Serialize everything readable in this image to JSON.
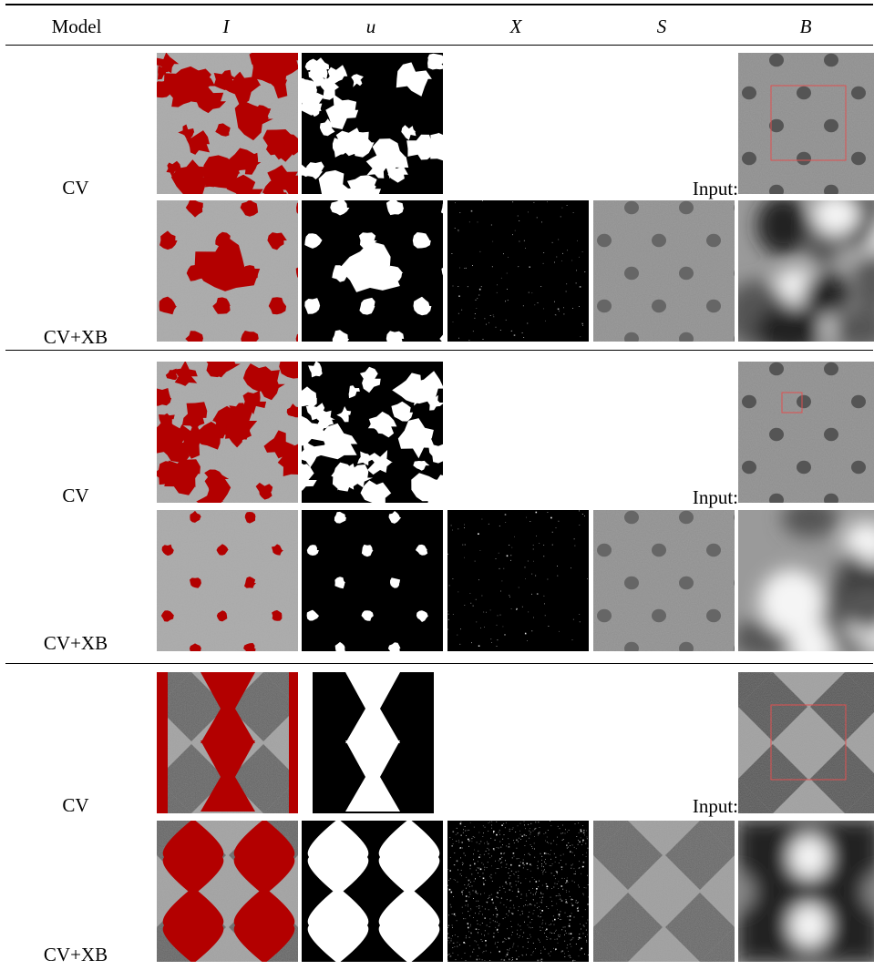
{
  "header": {
    "model": "Model",
    "cols": [
      "I",
      "u",
      "X",
      "S",
      "B"
    ]
  },
  "blocks": [
    {
      "row_cv": "CV",
      "row_xb": "CV+XB",
      "input_label": "Input:",
      "pattern": "dots-dense"
    },
    {
      "row_cv": "CV",
      "row_xb": "CV+XB",
      "input_label": "Input:",
      "pattern": "dots-sparse"
    },
    {
      "row_cv": "CV",
      "row_xb": "CV+XB",
      "input_label": "Input:",
      "pattern": "diamonds"
    }
  ],
  "colors": {
    "segmentation": "#b30000",
    "rule": "#000000",
    "box": "#e05050"
  }
}
